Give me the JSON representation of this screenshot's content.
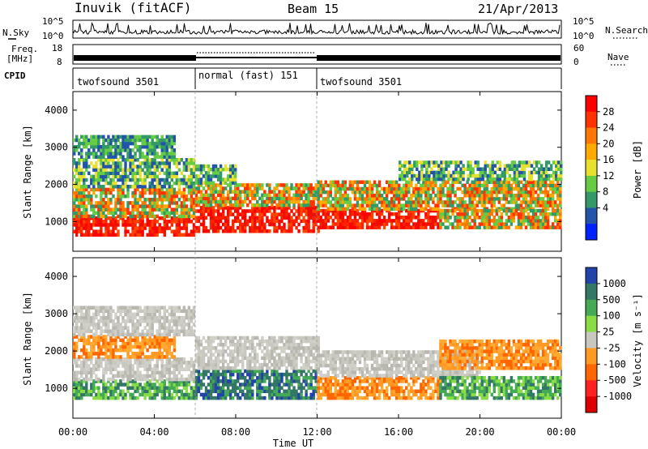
{
  "header": {
    "title": "Inuvik (fitACF)",
    "beam": "Beam 15",
    "date": "21/Apr/2013"
  },
  "panels": {
    "nsky": {
      "left_label": "N.Sky",
      "right_label": "N.Search",
      "left_ticks": [
        "10^5",
        "10^0"
      ],
      "right_ticks": [
        "10^5",
        "10^0"
      ]
    },
    "freq": {
      "left_label_line1": "Freq.",
      "left_label_line2": "[MHz]",
      "right_label": "Nave",
      "left_ticks": [
        "18",
        "8"
      ],
      "right_ticks": [
        "60",
        "0"
      ]
    },
    "cpid": {
      "label": "CPID",
      "modes": [
        {
          "name": "twofsound 3501",
          "start_hour": 0,
          "end_hour": 6
        },
        {
          "name": "normal (fast) 151",
          "start_hour": 6,
          "end_hour": 12
        },
        {
          "name": "twofsound 3501",
          "start_hour": 12,
          "end_hour": 24
        }
      ]
    }
  },
  "colorbars": {
    "power": {
      "label": "Power [dB]",
      "ticks": [
        "28",
        "24",
        "20",
        "16",
        "12",
        "8",
        "4"
      ],
      "colors": [
        "#ff0000",
        "#ff3300",
        "#ff7700",
        "#ffaa00",
        "#e8e030",
        "#66cc44",
        "#339966",
        "#2255aa",
        "#0022ff"
      ]
    },
    "velocity": {
      "label": "Velocity [m s⁻¹]",
      "ticks": [
        "1000",
        "500",
        "100",
        "25",
        "-25",
        "-100",
        "-500",
        "-1000"
      ],
      "colors": [
        "#2244aa",
        "#337766",
        "#44aa55",
        "#88dd44",
        "#c8c8c0",
        "#ff9922",
        "#ff6600",
        "#ff2222",
        "#dd0000"
      ]
    }
  },
  "chart_data": [
    {
      "type": "heatmap",
      "title": "Power",
      "ylabel": "Slant Range [km]",
      "xlabel": "Time UT",
      "x_ticks": [
        "00:00",
        "04:00",
        "08:00",
        "12:00",
        "16:00",
        "20:00",
        "00:00"
      ],
      "y_ticks": [
        "1000",
        "2000",
        "3000",
        "4000"
      ],
      "xlim_hours": [
        0,
        24
      ],
      "ylim_km": [
        200,
        4500
      ],
      "colorbar": "power",
      "bands": [
        {
          "t0": 0,
          "t1": 6,
          "r0": 600,
          "r1": 1100,
          "level": "high"
        },
        {
          "t0": 0,
          "t1": 6,
          "r0": 1100,
          "r1": 1900,
          "level": "medium"
        },
        {
          "t0": 0,
          "t1": 6,
          "r0": 1900,
          "r1": 2700,
          "level": "low"
        },
        {
          "t0": 0,
          "t1": 5,
          "r0": 2700,
          "r1": 3300,
          "level": "weak"
        },
        {
          "t0": 6,
          "t1": 12,
          "r0": 700,
          "r1": 1400,
          "level": "high"
        },
        {
          "t0": 6,
          "t1": 12,
          "r0": 1400,
          "r1": 2000,
          "level": "medium"
        },
        {
          "t0": 6,
          "t1": 8,
          "r0": 2000,
          "r1": 2500,
          "level": "low"
        },
        {
          "t0": 12,
          "t1": 18,
          "r0": 800,
          "r1": 1300,
          "level": "high"
        },
        {
          "t0": 12,
          "t1": 24,
          "r0": 1300,
          "r1": 2100,
          "level": "medium"
        },
        {
          "t0": 16,
          "t1": 24,
          "r0": 2100,
          "r1": 2600,
          "level": "low"
        },
        {
          "t0": 18,
          "t1": 24,
          "r0": 800,
          "r1": 1300,
          "level": "medium"
        }
      ]
    },
    {
      "type": "heatmap",
      "title": "Velocity",
      "ylabel": "Slant Range [km]",
      "xlabel": "Time UT",
      "x_ticks": [
        "00:00",
        "04:00",
        "08:00",
        "12:00",
        "16:00",
        "20:00",
        "00:00"
      ],
      "y_ticks": [
        "1000",
        "2000",
        "3000",
        "4000"
      ],
      "xlim_hours": [
        0,
        24
      ],
      "ylim_km": [
        200,
        4500
      ],
      "colorbar": "velocity",
      "bands": [
        {
          "t0": 0,
          "t1": 6,
          "r0": 700,
          "r1": 1200,
          "level": "pos_mid"
        },
        {
          "t0": 0,
          "t1": 6,
          "r0": 1200,
          "r1": 1800,
          "level": "zero"
        },
        {
          "t0": 0,
          "t1": 5,
          "r0": 1800,
          "r1": 2400,
          "level": "neg_mid"
        },
        {
          "t0": 0,
          "t1": 6,
          "r0": 2400,
          "r1": 3200,
          "level": "zero"
        },
        {
          "t0": 6,
          "t1": 12,
          "r0": 700,
          "r1": 1500,
          "level": "pos_high"
        },
        {
          "t0": 6,
          "t1": 12,
          "r0": 1500,
          "r1": 2400,
          "level": "zero"
        },
        {
          "t0": 12,
          "t1": 18,
          "r0": 700,
          "r1": 1300,
          "level": "neg_mid"
        },
        {
          "t0": 12,
          "t1": 20,
          "r0": 1300,
          "r1": 2000,
          "level": "zero"
        },
        {
          "t0": 18,
          "t1": 24,
          "r0": 700,
          "r1": 1300,
          "level": "pos_mid"
        },
        {
          "t0": 18,
          "t1": 24,
          "r0": 1500,
          "r1": 2300,
          "level": "neg_mid"
        }
      ]
    }
  ]
}
